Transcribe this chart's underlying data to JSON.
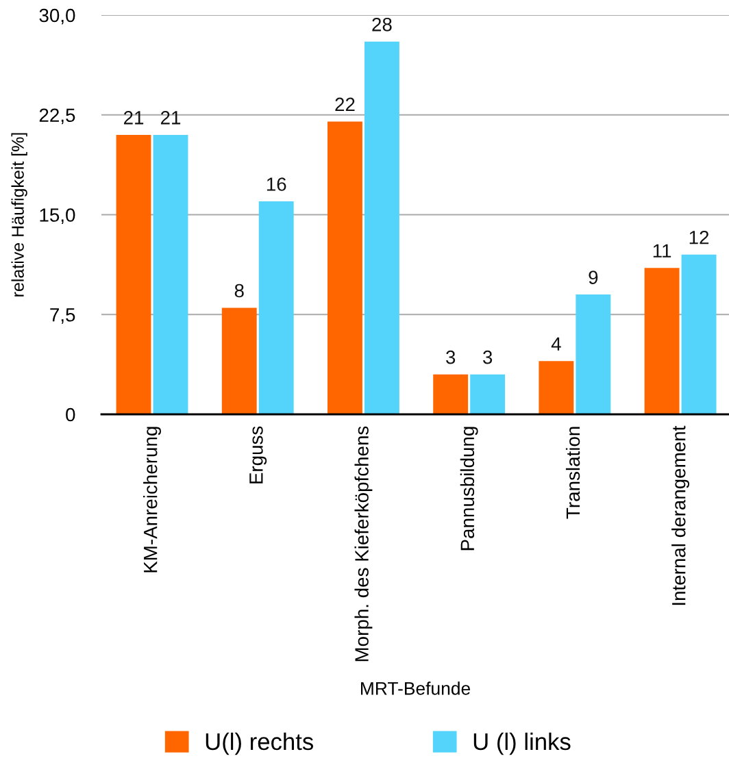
{
  "chart_data": {
    "type": "bar",
    "xlabel": "MRT-Befunde",
    "ylabel": "relative Häufigkeit [%]",
    "categories": [
      "KM-Anreicherung",
      "Erguss",
      "Morph. des Kieferköpfchens",
      "Pannusbildung",
      "Translation",
      "Internal derangement"
    ],
    "series": [
      {
        "name": "U(l) rechts",
        "color": "#ff6600",
        "values": [
          21,
          8,
          22,
          3,
          4,
          11
        ]
      },
      {
        "name": "U (l) links",
        "color": "#55d4fb",
        "values": [
          21,
          16,
          28,
          3,
          9,
          12
        ]
      }
    ],
    "ylim": [
      0,
      30
    ],
    "yticks": [
      0,
      {
        "value": 7.5,
        "label": "7,5"
      },
      {
        "value": 15,
        "label": "15,0"
      },
      {
        "value": 22.5,
        "label": "22,5"
      },
      {
        "value": 30,
        "label": "30,0"
      }
    ],
    "grid": "y",
    "legend": "bottom",
    "data_labels": true
  }
}
